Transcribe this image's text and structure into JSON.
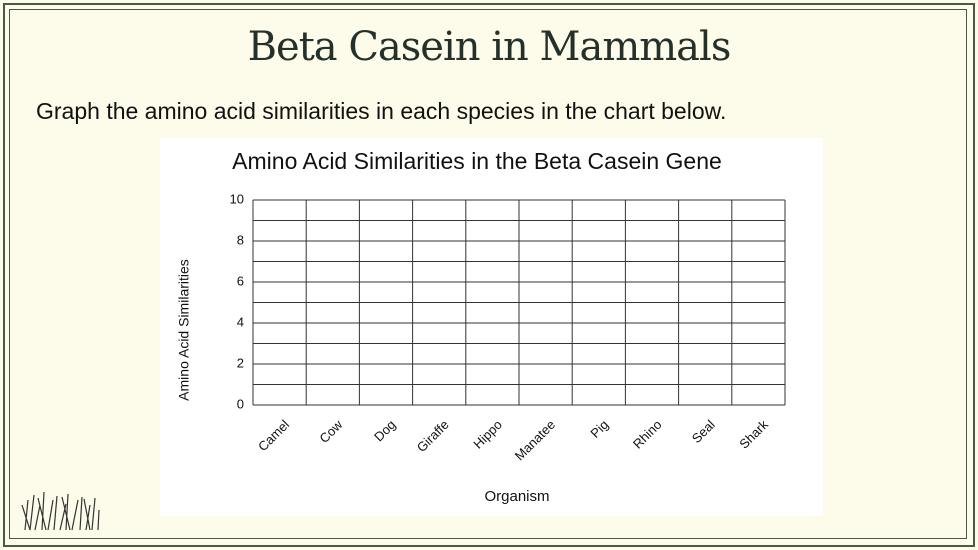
{
  "slide": {
    "title": "Beta Casein in Mammals",
    "instruction": "Graph the amino acid similarities in each species in the chart below."
  },
  "chart_data": {
    "type": "bar",
    "title": "Amino Acid Similarities in the Beta Casein Gene",
    "x_label": "Organism",
    "y_label": "Amino Acid Similarities",
    "categories": [
      "Camel",
      "Cow",
      "Dog",
      "Giraffe",
      "Hippo",
      "Manatee",
      "Pig",
      "Rhino",
      "Seal",
      "Shark"
    ],
    "ylim": [
      0,
      10
    ],
    "yticks": [
      0,
      2,
      4,
      6,
      8,
      10
    ],
    "minor_gridlines": [
      1,
      3,
      5,
      7,
      9
    ],
    "grid": true
  }
}
